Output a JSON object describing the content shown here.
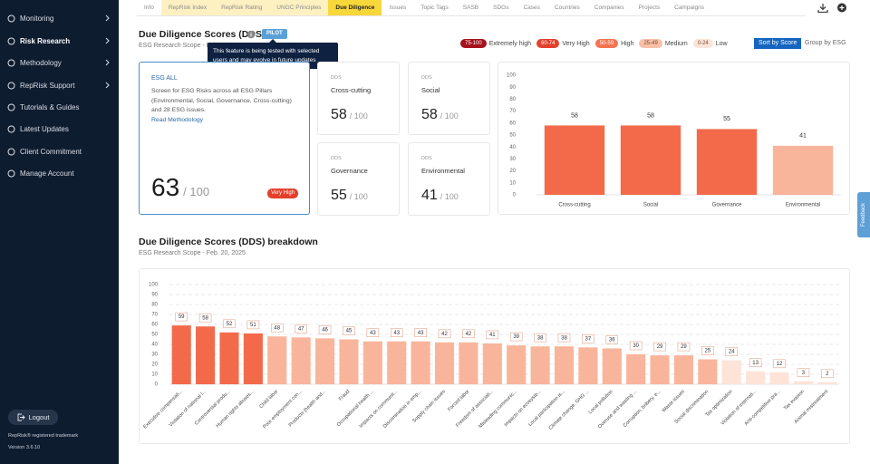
{
  "sidebar": {
    "nav": [
      "Monitoring",
      "Risk Research",
      "Methodology",
      "RepRisk Support",
      "Tutorials & Guides",
      "Latest Updates",
      "Client Commitment",
      "Manage Account"
    ],
    "logout": "Logout",
    "trademark": "RepRisk® registered trademark",
    "version": "Version 3.6.10"
  },
  "tabs": [
    {
      "label": "Info"
    },
    {
      "label": "RepRisk Index",
      "color": "#fdf1c2"
    },
    {
      "label": "RepRisk Rating",
      "color": "#fdf1c2"
    },
    {
      "label": "UNGC Principles",
      "color": "#fdf1c2"
    },
    {
      "label": "Due Diligence",
      "color": "#f8d73a",
      "active": true
    },
    {
      "label": "Issues"
    },
    {
      "label": "Topic Tags"
    },
    {
      "label": "SASB"
    },
    {
      "label": "SDGs"
    },
    {
      "label": "Cases"
    },
    {
      "label": "Countries"
    },
    {
      "label": "Companies"
    },
    {
      "label": "Projects"
    },
    {
      "label": "Campaigns"
    }
  ],
  "feedback": "Feedback",
  "header": {
    "title": "Due Diligence Scores (DDS)",
    "badge": "PILOT",
    "subtitle": "ESG Research Scope - Feb. 20, 2025",
    "tooltip": "This feature is being tested with selected users and may evolve in future updates"
  },
  "legend": [
    {
      "range": "75-100",
      "label": "Extremely high",
      "color": "#a5121c"
    },
    {
      "range": "60-74",
      "label": "Very High",
      "color": "#e4402c"
    },
    {
      "range": "50-59",
      "label": "High",
      "color": "#f37452"
    },
    {
      "range": "25-49",
      "label": "Medium",
      "color": "#f9c0a8"
    },
    {
      "range": "0-24",
      "label": "Low",
      "color": "#fde4d8"
    }
  ],
  "buttons": [
    "Sort by Score",
    "Group by ESG"
  ],
  "summary": {
    "label": "ESG ALL",
    "description": "Screen for ESG Risks across all ESG Pillars (Environmental, Social, Governance, Cross-cutting) and 28 ESG issues.",
    "link": "Read Methodology",
    "score": 63,
    "out_of": "/ 100",
    "rating": "Very High"
  },
  "cards": [
    {
      "kind": "DDS",
      "name": "Cross-cutting",
      "score": 58
    },
    {
      "kind": "DDS",
      "name": "Social",
      "score": 58
    },
    {
      "kind": "DDS",
      "name": "Governance",
      "score": 55
    },
    {
      "kind": "DDS",
      "name": "Environmental",
      "score": 41
    }
  ],
  "pillar_chart": {
    "type": "bar",
    "categories": [
      "Cross-cutting",
      "Social",
      "Governance",
      "Environmental"
    ],
    "values": [
      58,
      58,
      55,
      41
    ],
    "colors": [
      "#f36a4b",
      "#f36a4b",
      "#f36a4b",
      "#f9b59b"
    ],
    "ylim": [
      0,
      100
    ],
    "yticks": [
      0,
      10,
      20,
      30,
      40,
      50,
      60,
      70,
      80,
      90,
      100
    ],
    "grid": false
  },
  "breakdown": {
    "title": "Due Diligence Scores (DDS) breakdown",
    "subtitle": "ESG Research Scope - Feb. 20, 2025",
    "chart": {
      "type": "bar",
      "categories": [
        "Executive compensati...",
        "Violation of national l...",
        "Controversial produ...",
        "Human rights abuses...",
        "Child labor",
        "Poor employment con...",
        "Products (health and...",
        "Fraud",
        "Occupational health ...",
        "Impacts on communit...",
        "Discrimination in emp...",
        "Supply chain issues",
        "Forced labor",
        "Freedom of associati...",
        "Misleading communic...",
        "Impacts on ecosyste...",
        "Local participation is...",
        "Climate change, GHG ...",
        "Local pollution",
        "Overuse and wasting ...",
        "Corruption, bribery, e...",
        "Waste issues",
        "Social discrimination",
        "Tax optimization",
        "Violation of internati...",
        "Anti-competitive pra...",
        "Tax evasion",
        "Animal mistreatment"
      ],
      "values": [
        59,
        58,
        52,
        51,
        48,
        47,
        46,
        45,
        43,
        43,
        43,
        42,
        42,
        41,
        39,
        38,
        38,
        37,
        36,
        30,
        29,
        29,
        25,
        24,
        13,
        12,
        3,
        2
      ],
      "colors": [
        "#f36a4b",
        "#f36a4b",
        "#f36a4b",
        "#f36a4b",
        "#f9b59b",
        "#f9b59b",
        "#f9b59b",
        "#f9b59b",
        "#f9b59b",
        "#f9b59b",
        "#f9b59b",
        "#f9b59b",
        "#f9b59b",
        "#f9b59b",
        "#f9b59b",
        "#f9b59b",
        "#f9b59b",
        "#f9b59b",
        "#f9b59b",
        "#f9b59b",
        "#f9b59b",
        "#f9b59b",
        "#f9b59b",
        "#fde3d8",
        "#fde3d8",
        "#fde3d8",
        "#fde3d8",
        "#fde3d8"
      ],
      "ylim": [
        0,
        100
      ],
      "yticks": [
        0,
        10,
        20,
        30,
        40,
        50,
        60,
        70,
        80,
        90,
        100
      ],
      "grid": true
    }
  }
}
